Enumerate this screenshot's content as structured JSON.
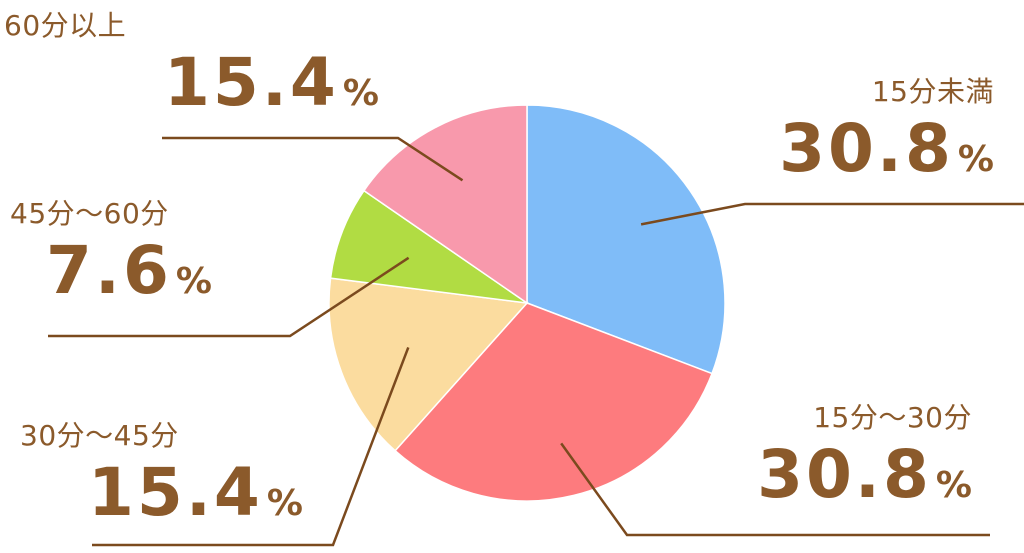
{
  "chart_data": {
    "type": "pie",
    "title": "",
    "unit": "%",
    "slices": [
      {
        "label": "15分未満",
        "value": 30.8,
        "value_text": "30.8",
        "color": "#7fbcf8"
      },
      {
        "label": "15分～30分",
        "value": 30.8,
        "value_text": "30.8",
        "color": "#fd7b7e"
      },
      {
        "label": "30分～45分",
        "value": 15.4,
        "value_text": "15.4",
        "color": "#fbdc9f"
      },
      {
        "label": "45分～60分",
        "value": 7.6,
        "value_text": "7.6",
        "color": "#b1dc43"
      },
      {
        "label": "60分以上",
        "value": 15.4,
        "value_text": "15.4",
        "color": "#f899ac"
      }
    ],
    "start_angle": "12 o'clock",
    "direction": "clockwise",
    "label_color": "#8b5a2b",
    "leader_line_color": "#7b4a1e"
  }
}
